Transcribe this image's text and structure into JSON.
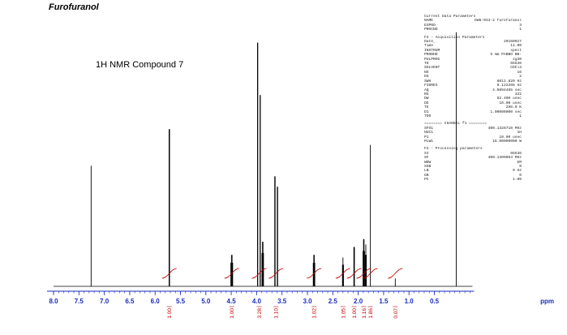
{
  "title": "Furofuranol",
  "compound_label": "1H NMR Compound 7",
  "parameters": {
    "current": {
      "heading": "Current Data Parameters",
      "rows": [
        {
          "k": "NAME",
          "v": "DW6-034-2 furofuranol"
        },
        {
          "k": "EXPNO",
          "v": "3"
        },
        {
          "k": "PROCNO",
          "v": "1"
        }
      ]
    },
    "acquisition": {
      "heading": "F2 - Acquisition Parameters",
      "rows": [
        {
          "k": "Date_",
          "v": "20160927"
        },
        {
          "k": "Time",
          "v": "11.00"
        },
        {
          "k": "INSTRUM",
          "v": "spect"
        },
        {
          "k": "PROBHD",
          "v": "5 mm PABBO BB-"
        },
        {
          "k": "PULPROG",
          "v": "zg30"
        },
        {
          "k": "TD",
          "v": "65536"
        },
        {
          "k": "SOLVENT",
          "v": "CDCl3"
        },
        {
          "k": "NS",
          "v": "16"
        },
        {
          "k": "DS",
          "v": "2"
        },
        {
          "k": "SWH",
          "v": "8012.820 Hz"
        },
        {
          "k": "FIDRES",
          "v": "0.122266 Hz"
        },
        {
          "k": "AQ",
          "v": "4.0894465 sec"
        },
        {
          "k": "RG",
          "v": "322"
        },
        {
          "k": "DW",
          "v": "62.400 usec"
        },
        {
          "k": "DE",
          "v": "10.00 usec"
        },
        {
          "k": "TE",
          "v": "298.0 K"
        },
        {
          "k": "D1",
          "v": "1.00000000 sec"
        },
        {
          "k": "TD0",
          "v": "1"
        }
      ]
    },
    "channel": {
      "heading": "======== CHANNEL f1 ========",
      "rows": [
        {
          "k": "SFO1",
          "v": "400.1326710 MHz"
        },
        {
          "k": "NUC1",
          "v": "1H"
        },
        {
          "k": "P1",
          "v": "10.00 usec"
        },
        {
          "k": "PLW1",
          "v": "16.00000000 W"
        }
      ]
    },
    "processing": {
      "heading": "F2 - Processing parameters",
      "rows": [
        {
          "k": "SI",
          "v": "65536"
        },
        {
          "k": "SF",
          "v": "400.1300054 MHz"
        },
        {
          "k": "WDW",
          "v": "EM"
        },
        {
          "k": "SSB",
          "v": "0"
        },
        {
          "k": "LB",
          "v": "0 Hz"
        },
        {
          "k": "GB",
          "v": "0"
        },
        {
          "k": "PC",
          "v": "1.00"
        }
      ]
    }
  },
  "chart_data": {
    "type": "line",
    "title": "Furofuranol",
    "annotation": "1H NMR Compound 7",
    "xlabel": "ppm",
    "xlim": [
      8.0,
      -0.25
    ],
    "x_reversed": true,
    "x_ticks": [
      8.0,
      7.5,
      7.0,
      6.5,
      6.0,
      5.5,
      5.0,
      4.5,
      4.0,
      3.5,
      3.0,
      2.5,
      2.0,
      1.5,
      1.0,
      0.5
    ],
    "x_tick_labels": [
      "8.0",
      "7.5",
      "7.0",
      "6.5",
      "6.0",
      "5.5",
      "5.0",
      "4.5",
      "4.0",
      "3.5",
      "3.0",
      "2.5",
      "2.0",
      "1.5",
      "1.0",
      "0.5"
    ],
    "y_relative_max": 1.0,
    "peaks": [
      {
        "ppm": 7.26,
        "height": 0.46,
        "mult": 1
      },
      {
        "ppm": 5.72,
        "height": 0.6,
        "mult": 2,
        "j": 0.01
      },
      {
        "ppm": 4.49,
        "height": 0.12,
        "mult": 4,
        "j": 0.012
      },
      {
        "ppm": 3.98,
        "height": 0.93,
        "mult": 2,
        "j": 0.006
      },
      {
        "ppm": 3.93,
        "height": 0.73,
        "mult": 2,
        "j": 0.006
      },
      {
        "ppm": 3.88,
        "height": 0.17,
        "mult": 4,
        "j": 0.01
      },
      {
        "ppm": 3.64,
        "height": 0.42,
        "mult": 2,
        "j": 0.008
      },
      {
        "ppm": 3.59,
        "height": 0.38,
        "mult": 2,
        "j": 0.008
      },
      {
        "ppm": 2.87,
        "height": 0.12,
        "mult": 4,
        "j": 0.01
      },
      {
        "ppm": 2.3,
        "height": 0.11,
        "mult": 3,
        "j": 0.01
      },
      {
        "ppm": 2.08,
        "height": 0.15,
        "mult": 2,
        "j": 0.012
      },
      {
        "ppm": 1.89,
        "height": 0.18,
        "mult": 4,
        "j": 0.01
      },
      {
        "ppm": 1.85,
        "height": 0.16,
        "mult": 3,
        "j": 0.01
      },
      {
        "ppm": 1.76,
        "height": 0.54,
        "mult": 1
      },
      {
        "ppm": 1.27,
        "height": 0.03,
        "mult": 1
      },
      {
        "ppm": 0.07,
        "height": 0.97,
        "mult": 1
      }
    ],
    "integrals": [
      {
        "ppm": 5.72,
        "label": "1.00"
      },
      {
        "ppm": 4.49,
        "label": "1.00"
      },
      {
        "ppm": 3.95,
        "label": "3.28"
      },
      {
        "ppm": 3.62,
        "label": "1.10"
      },
      {
        "ppm": 2.87,
        "label": "1.02"
      },
      {
        "ppm": 2.3,
        "label": "1.05"
      },
      {
        "ppm": 2.08,
        "label": "1.00"
      },
      {
        "ppm": 1.89,
        "label": "1.16"
      },
      {
        "ppm": 1.76,
        "label": "1.86"
      },
      {
        "ppm": 1.27,
        "label": "0.07"
      }
    ],
    "colors": {
      "spectrum": "#000000",
      "axis": "#1a2bbd",
      "integral": "#c00000"
    }
  }
}
